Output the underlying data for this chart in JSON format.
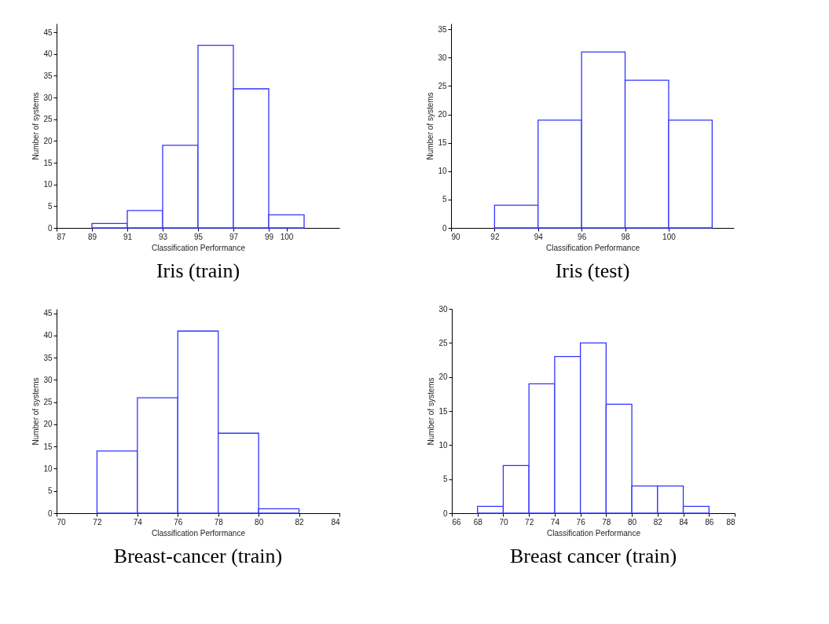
{
  "chart_data": [
    {
      "type": "histogram",
      "title": "Iris (train)",
      "xlabel": "Classification Performance",
      "ylabel": "Number of systems",
      "color": "#3333ff",
      "bins": [
        89,
        91,
        93,
        95,
        97,
        99,
        101
      ],
      "values": [
        1,
        4,
        19,
        42,
        32,
        3
      ],
      "xlim": [
        87,
        103
      ],
      "xticks": [
        87,
        89,
        91,
        93,
        95,
        97,
        99,
        100
      ],
      "ylim": [
        0,
        47
      ],
      "yticks": [
        0,
        5,
        10,
        15,
        20,
        25,
        30,
        35,
        40,
        45
      ],
      "grid": false
    },
    {
      "type": "histogram",
      "title": "Iris (test)",
      "xlabel": "Classification Performance",
      "ylabel": "Number of systems",
      "color": "#3333ff",
      "bins": [
        92,
        94,
        96,
        98,
        100,
        102
      ],
      "values": [
        4,
        19,
        31,
        26,
        19
      ],
      "xlim": [
        90,
        103
      ],
      "xticks": [
        90,
        92,
        94,
        96,
        98,
        100
      ],
      "ylim": [
        0,
        36
      ],
      "yticks": [
        0,
        5,
        10,
        15,
        20,
        25,
        30,
        35
      ],
      "grid": false
    },
    {
      "type": "histogram",
      "title": "Breast-cancer (train)",
      "xlabel": "Classification Performance",
      "ylabel": "Number of systems",
      "color": "#3333ff",
      "bins": [
        72,
        74,
        76,
        78,
        80,
        82
      ],
      "values": [
        14,
        26,
        41,
        18,
        1
      ],
      "xlim": [
        70,
        84
      ],
      "xticks": [
        70,
        72,
        74,
        76,
        78,
        80,
        82,
        84
      ],
      "ylim": [
        0,
        46
      ],
      "yticks": [
        0,
        5,
        10,
        15,
        20,
        25,
        30,
        35,
        40,
        45
      ],
      "grid": false
    },
    {
      "type": "histogram",
      "title": "Breast cancer (train)",
      "xlabel": "Classification Performance",
      "ylabel": "Number of systems",
      "color": "#3333ff",
      "bins": [
        68,
        70,
        72,
        74,
        76,
        78,
        80,
        82,
        84,
        86
      ],
      "values": [
        1,
        7,
        19,
        23,
        25,
        16,
        4,
        4,
        1
      ],
      "xlim": [
        66,
        88
      ],
      "xticks": [
        66,
        68,
        70,
        72,
        74,
        76,
        78,
        80,
        82,
        84,
        86,
        88
      ],
      "ylim": [
        0,
        30
      ],
      "yticks": [
        0,
        5,
        10,
        15,
        20,
        25,
        30
      ],
      "grid": false
    }
  ]
}
